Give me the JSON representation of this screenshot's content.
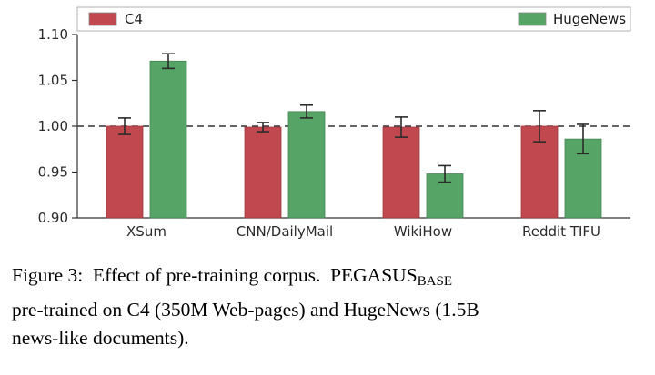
{
  "chart_data": {
    "type": "bar",
    "categories": [
      "XSum",
      "CNN/DailyMail",
      "WikiHow",
      "Reddit TIFU"
    ],
    "series": [
      {
        "name": "C4",
        "color": "#c0484e",
        "edge_color": "#9e3a40",
        "values": [
          1.0,
          0.999,
          0.999,
          1.0
        ],
        "errors": [
          0.009,
          0.005,
          0.011,
          0.017
        ]
      },
      {
        "name": "HugeNews",
        "color": "#56a567",
        "edge_color": "#458454",
        "values": [
          1.071,
          1.016,
          0.948,
          0.986
        ],
        "errors": [
          0.008,
          0.007,
          0.009,
          0.016
        ]
      }
    ],
    "ylim": [
      0.9,
      1.1
    ],
    "yticks": [
      0.9,
      0.95,
      1.0,
      1.05,
      1.1
    ],
    "baseline": 1.0,
    "grid": false,
    "legend_position": "top",
    "title": "",
    "xlabel": "",
    "ylabel": ""
  },
  "colors": {
    "c4": "#c0484e",
    "hugenews": "#56a567",
    "error_bar": "#2b2b2b",
    "axis": "#333333",
    "tick_text": "#2b2b2b",
    "legend_border": "#b0b0b0",
    "baseline_dash": "#333333"
  },
  "legend": {
    "c4_label": "C4",
    "hugenews_label": "HugeNews"
  },
  "caption": {
    "line1_before_sub": "Figure 3:  Effect of pre-training corpus.  PEGASUS",
    "subscript": "BASE",
    "line2": "pre-trained on C4 (350M Web-pages) and HugeNews (1.5B",
    "line3": "news-like documents)."
  }
}
